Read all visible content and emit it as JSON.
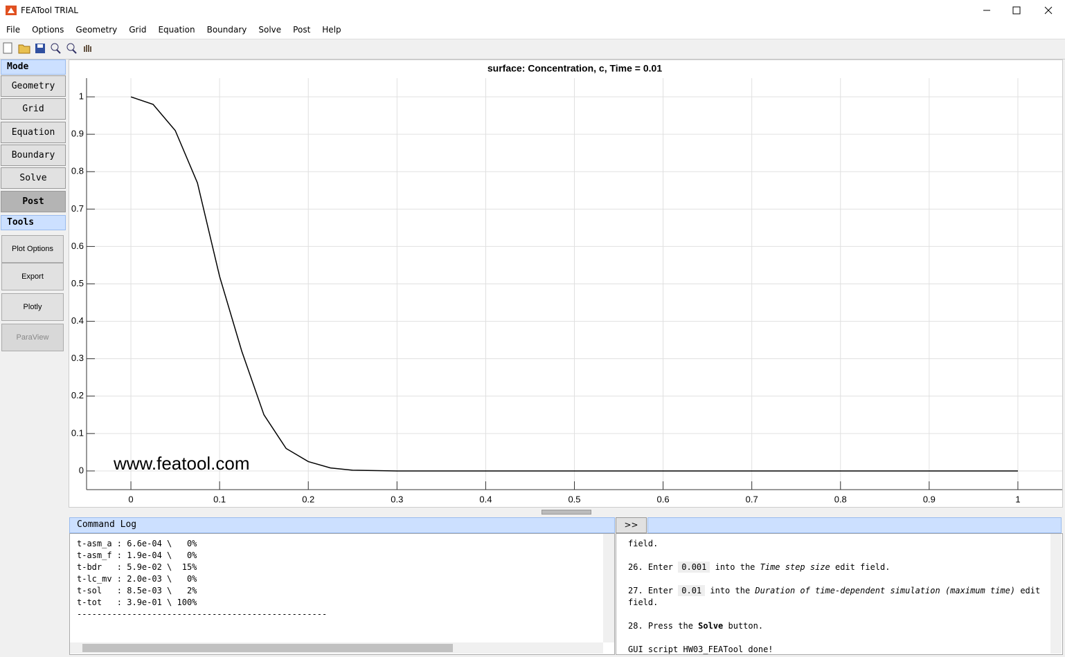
{
  "window": {
    "title": "FEATool TRIAL"
  },
  "menu": [
    "File",
    "Options",
    "Geometry",
    "Grid",
    "Equation",
    "Boundary",
    "Solve",
    "Post",
    "Help"
  ],
  "sidebar": {
    "mode_label": "Mode",
    "mode_buttons": [
      "Geometry",
      "Grid",
      "Equation",
      "Boundary",
      "Solve",
      "Post"
    ],
    "active_mode": "Post",
    "tools_label": "Tools",
    "tool_buttons": [
      "Plot Options",
      "Export",
      "Plotly",
      "ParaView"
    ],
    "disabled_tool": "ParaView"
  },
  "chart_data": {
    "type": "line",
    "title": "surface: Concentration, c, Time = 0.01",
    "x": [
      0,
      0.025,
      0.05,
      0.075,
      0.1,
      0.125,
      0.15,
      0.175,
      0.2,
      0.225,
      0.25,
      0.3,
      0.4,
      0.5,
      0.6,
      0.7,
      0.8,
      0.9,
      1
    ],
    "values": [
      1,
      0.98,
      0.91,
      0.77,
      0.52,
      0.32,
      0.15,
      0.06,
      0.025,
      0.008,
      0.002,
      0,
      0,
      0,
      0,
      0,
      0,
      0,
      0
    ],
    "color": "#000000",
    "xlim": [
      -0.05,
      1.05
    ],
    "ylim": [
      -0.05,
      1.05
    ],
    "xticks": [
      0,
      0.1,
      0.2,
      0.3,
      0.4,
      0.5,
      0.6,
      0.7,
      0.8,
      0.9,
      1
    ],
    "yticks": [
      0,
      0.1,
      0.2,
      0.3,
      0.4,
      0.5,
      0.6,
      0.7,
      0.8,
      0.9,
      1
    ],
    "grid": true,
    "annotation": "www.featool.com"
  },
  "command_log": {
    "title": "Command Log",
    "lines": [
      "t-asm_a : 6.6e-04 \\   0%",
      "t-asm_f : 1.9e-04 \\   0%",
      "t-bdr   : 5.9e-02 \\  15%",
      "t-lc_mv : 2.0e-03 \\   0%",
      "t-sol   : 8.5e-03 \\   2%",
      "t-tot   : 3.9e-01 \\ 100%",
      "--------------------------------------------------"
    ]
  },
  "help": {
    "button": ">>",
    "paragraphs": [
      [
        {
          "text": "field."
        }
      ],
      [
        {
          "text": "26. Enter "
        },
        {
          "text": "0.001",
          "style": "code"
        },
        {
          "text": " into the "
        },
        {
          "text": "Time step size",
          "style": "italic"
        },
        {
          "text": " edit field."
        }
      ],
      [
        {
          "text": "27. Enter "
        },
        {
          "text": "0.01",
          "style": "code"
        },
        {
          "text": " into the "
        },
        {
          "text": "Duration of time-dependent simulation (maximum time)",
          "style": "italic"
        },
        {
          "text": " edit field."
        }
      ],
      [
        {
          "text": "28. Press the "
        },
        {
          "text": "Solve",
          "style": "bold"
        },
        {
          "text": " button."
        }
      ],
      [
        {
          "text": "GUI script HW03_FEATool done!"
        }
      ]
    ]
  }
}
